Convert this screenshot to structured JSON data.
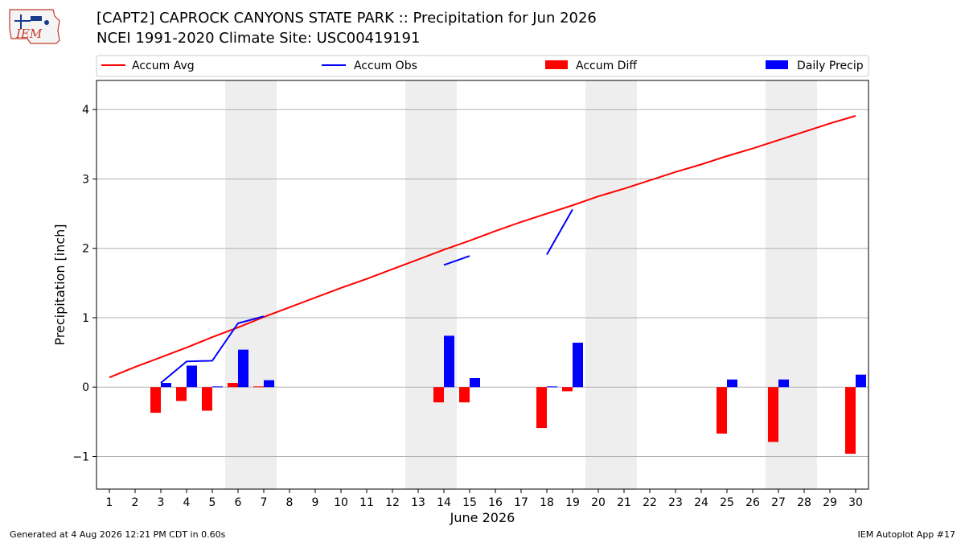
{
  "header": {
    "title_line1": "[CAPT2] CAPROCK CANYONS STATE PARK :: Precipitation for Jun 2026",
    "title_line2": "NCEI 1991-2020 Climate Site: USC00419191",
    "logo_text": "IEM"
  },
  "footer": {
    "generated": "Generated at 4 Aug 2026 12:21 PM CDT in 0.60s",
    "app": "IEM Autoplot App #17"
  },
  "colors": {
    "avg": "#ff0000",
    "obs": "#0000ff",
    "diff": "#ff0000",
    "daily": "#0000ff",
    "weekend": "#eeeeee",
    "grid": "#b0b0b0"
  },
  "chart_data": {
    "type": "bar",
    "xlabel": "June 2026",
    "ylabel": "Precipitation [inch]",
    "xlim": [
      0.5,
      30.5
    ],
    "ylim": [
      -1.47,
      4.42
    ],
    "yticks": [
      -1,
      0,
      1,
      2,
      3,
      4
    ],
    "ytick_labels": [
      "−1",
      "0",
      "1",
      "2",
      "3",
      "4"
    ],
    "days": [
      1,
      2,
      3,
      4,
      5,
      6,
      7,
      8,
      9,
      10,
      11,
      12,
      13,
      14,
      15,
      16,
      17,
      18,
      19,
      20,
      21,
      22,
      23,
      24,
      25,
      26,
      27,
      28,
      29,
      30
    ],
    "weekend_days": [
      6,
      7,
      13,
      14,
      20,
      21,
      27,
      28
    ],
    "legend": {
      "position": "top",
      "entries": [
        {
          "label": "Accum Avg",
          "kind": "line",
          "color": "#ff0000"
        },
        {
          "label": "Accum Obs",
          "kind": "line",
          "color": "#0000ff"
        },
        {
          "label": "Accum Diff",
          "kind": "bar",
          "color": "#ff0000"
        },
        {
          "label": "Daily Precip",
          "kind": "bar",
          "color": "#0000ff"
        }
      ]
    },
    "series": [
      {
        "name": "Accum Avg",
        "kind": "line",
        "color": "#ff0000",
        "x": [
          1,
          2,
          3,
          4,
          5,
          6,
          7,
          8,
          9,
          10,
          11,
          12,
          13,
          14,
          15,
          16,
          17,
          18,
          19,
          20,
          21,
          22,
          23,
          24,
          25,
          26,
          27,
          28,
          29,
          30
        ],
        "values": [
          0.14,
          0.29,
          0.43,
          0.57,
          0.72,
          0.86,
          1.01,
          1.15,
          1.29,
          1.43,
          1.56,
          1.7,
          1.84,
          1.98,
          2.11,
          2.25,
          2.38,
          2.5,
          2.62,
          2.75,
          2.86,
          2.98,
          3.1,
          3.21,
          3.33,
          3.44,
          3.56,
          3.68,
          3.8,
          3.91
        ]
      },
      {
        "name": "Accum Obs",
        "kind": "line",
        "color": "#0000ff",
        "segments": [
          {
            "x": [
              3,
              4,
              5,
              6,
              7
            ],
            "values": [
              0.06,
              0.37,
              0.38,
              0.92,
              1.02
            ]
          },
          {
            "x": [
              14,
              15
            ],
            "values": [
              1.76,
              1.89
            ]
          },
          {
            "x": [
              18,
              19
            ],
            "values": [
              1.91,
              2.56
            ]
          }
        ]
      },
      {
        "name": "Accum Diff",
        "kind": "bar",
        "color": "#ff0000",
        "x": [
          3,
          4,
          5,
          6,
          7,
          14,
          15,
          18,
          19,
          25,
          27,
          30
        ],
        "values": [
          -0.37,
          -0.2,
          -0.34,
          0.06,
          0.01,
          -0.22,
          -0.22,
          -0.59,
          -0.06,
          -0.67,
          -0.79,
          -0.96
        ]
      },
      {
        "name": "Daily Precip",
        "kind": "bar",
        "color": "#0000ff",
        "x": [
          3,
          4,
          5,
          6,
          7,
          14,
          15,
          18,
          19,
          25,
          27,
          30
        ],
        "values": [
          0.06,
          0.31,
          0.01,
          0.54,
          0.1,
          0.74,
          0.13,
          0.01,
          0.64,
          0.11,
          0.11,
          0.18
        ]
      }
    ]
  }
}
